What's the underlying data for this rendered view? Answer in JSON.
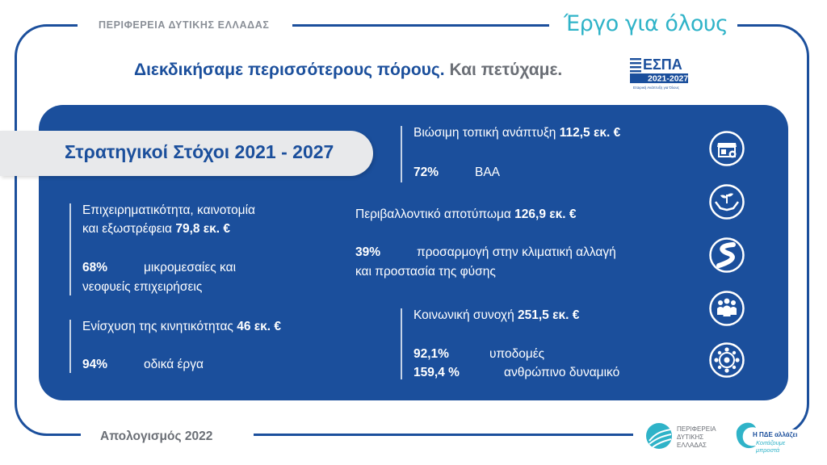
{
  "header": {
    "region_name": "ΠΕΡΙΦΕΡΕΙΑ ΔΥΤΙΚΗΣ ΕΛΛΑΔΑΣ",
    "slogan": "Έργο για όλους",
    "headline_main": "Διεκδικήσαμε περισσότερους πόρους.",
    "headline_sub": "Και πετύχαμε.",
    "espa_logo": {
      "word": "ΕΣΠΑ",
      "years": "2021-2027",
      "tagline": "Εταιρική Ανάπτυξη για Όλους"
    }
  },
  "panel": {
    "goals_title": "Στρατηγικοί Στόχοι 2021 - 2027",
    "left": {
      "goal1": {
        "line1": "Επιχειρηματικότητα, καινοτομία",
        "line2_text": "και εξωστρέφεια",
        "line2_amount": "79,8 εκ. €",
        "pct": "68%",
        "pct_label1": "μικρομεσαίες και",
        "pct_label2": "νεοφυείς επιχειρήσεις"
      },
      "goal2": {
        "text": "Ενίσχυση της κινητικότητας",
        "amount": "46 εκ. €",
        "pct": "94%",
        "pct_label": "οδικά έργα"
      }
    },
    "right": {
      "goal1": {
        "text": "Βιώσιμη τοπική ανάπτυξη",
        "amount": "112,5 εκ. €",
        "pct": "72%",
        "pct_label": "ΒΑΑ"
      },
      "goal2": {
        "text": "Περιβαλλοντικό αποτύπωμα",
        "amount": "126,9 εκ. €",
        "pct": "39%",
        "pct_label1": "προσαρμογή στην κλιματική αλλαγή",
        "pct_label2": "και προστασία της φύσης"
      },
      "goal3": {
        "text": "Κοινωνική συνοχή",
        "amount": "251,5 εκ. €",
        "pct1": "92,1%",
        "pct1_label": "υποδομές",
        "pct2": "159,4 %",
        "pct2_label": "ανθρώπινο δυναμικό"
      }
    },
    "icons": [
      "shop-icon",
      "hands-plant-icon",
      "road-icon",
      "people-icon",
      "network-icon"
    ]
  },
  "footer": {
    "label": "Απολογισμός 2022",
    "logo_region": {
      "line1": "ΠΕΡΙΦΕΡΕΙΑ",
      "line2": "ΔΥΤΙΚΗΣ",
      "line3": "ΕΛΛΑΔΑΣ"
    },
    "logo_pde": {
      "line1": "Η ΠΔΕ αλλάζει",
      "line2": "Κοιτάζουμε",
      "line3": "μπροστά"
    }
  },
  "colors": {
    "brand_blue": "#1b4f9c",
    "teal": "#2fb3c8",
    "gray": "#6b6f76"
  }
}
